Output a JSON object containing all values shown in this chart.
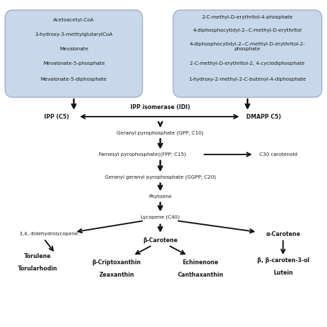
{
  "bg_color": "#ffffff",
  "box_bg": "#c8d8ea",
  "box_edge": "#9ab0c8",
  "text_color": "#1a1a1a",
  "arrow_color": "#111111",
  "left_box_items": [
    "Acetoacetyl-CoA",
    "3-hydroxy-3-methylglutarylCoA",
    "Mevalonate",
    "Mevalonate-5-phosphate",
    "Mevalonate-5-diphosphate"
  ],
  "right_box_items": [
    "2-C-methyl-D-erythritol-4-phosphate",
    "4-diphosphocytidyl-2--C-methyl-D-erythritol",
    "4-diphosphocytidyl-2--C-methyl-D-erythritol-2-\nphosphate",
    "2-C-methyl-D-erythritol-2, 4-cyclodiphosphate",
    "1-hydroxy-2-methyl-2-C-butenyl-4-diphosphate"
  ],
  "figsize": [
    4.74,
    4.74
  ],
  "dpi": 100
}
